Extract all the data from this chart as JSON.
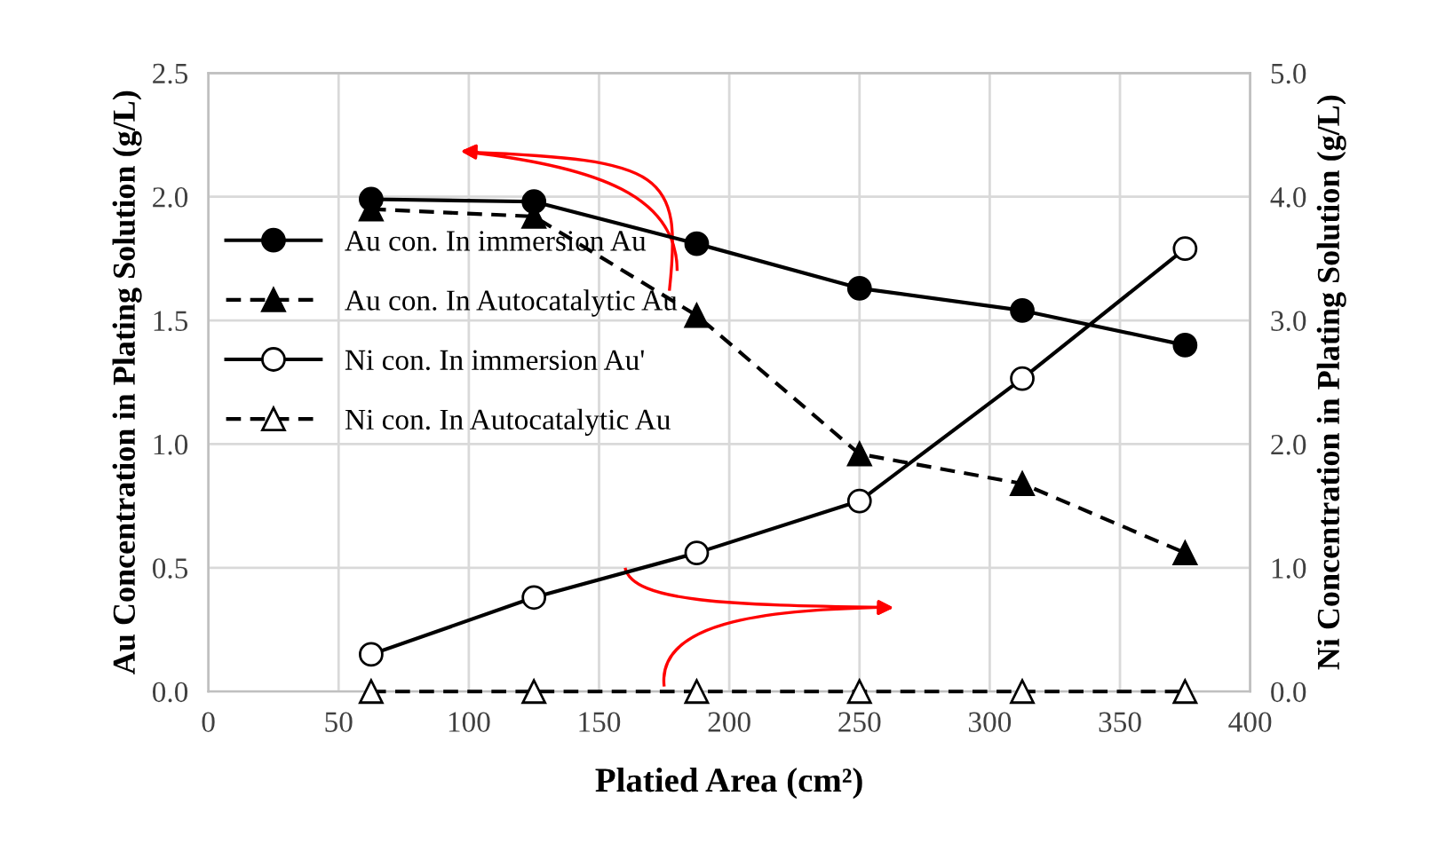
{
  "chart_data": {
    "type": "line",
    "xlabel": "Platied Area (cm²)",
    "ylabel": "Au Concentration in Plating Solution (g/L)",
    "y2label": "Ni Concentration in Plating Solution (g/L)",
    "x": [
      62.5,
      125,
      187.5,
      250,
      312.5,
      375
    ],
    "series": [
      {
        "name": "Au con. In immersion Au",
        "color": "#000000",
        "marker": "circle",
        "line_style": "solid",
        "values": [
          1.99,
          1.98,
          1.81,
          1.63,
          1.54,
          1.4
        ]
      },
      {
        "name": "Au con. In Autocatalytic Au",
        "color": "#000000",
        "marker": "triangle",
        "line_style": "dashed",
        "values": [
          1.95,
          1.92,
          1.52,
          0.96,
          0.84,
          0.56
        ]
      },
      {
        "name": "Ni con. In immersion Au'",
        "color": "#000000",
        "marker": "circle",
        "line_style": "solid",
        "axis": "y2",
        "values": [
          0.3,
          0.76,
          1.12,
          1.54,
          2.53,
          3.58
        ]
      },
      {
        "name": "Ni con. In Autocatalytic Au",
        "color": "#000000",
        "marker": "triangle",
        "line_style": "dashed",
        "axis": "y2",
        "values": [
          0,
          0,
          0,
          0,
          0,
          0
        ]
      }
    ],
    "xlim": [
      0,
      400
    ],
    "xticks": [
      0,
      50,
      100,
      150,
      200,
      250,
      300,
      350,
      400
    ],
    "ylim": [
      0,
      2.5
    ],
    "yticks": [
      {
        "value": 0,
        "label": "0.0"
      },
      0.5,
      {
        "value": 1,
        "label": "1.0"
      },
      1.5,
      {
        "value": 2,
        "label": "2.0"
      },
      2.5
    ],
    "y2lim": [
      0,
      5
    ],
    "y2ticks": [
      {
        "value": 0,
        "label": "0.0"
      },
      {
        "value": 1,
        "label": "1.0"
      },
      {
        "value": 2,
        "label": "2.0"
      },
      {
        "value": 3,
        "label": "3.0"
      },
      {
        "value": 4,
        "label": "4.0"
      },
      {
        "value": 5,
        "label": "5.0"
      }
    ],
    "grid": true,
    "legend": "left"
  }
}
